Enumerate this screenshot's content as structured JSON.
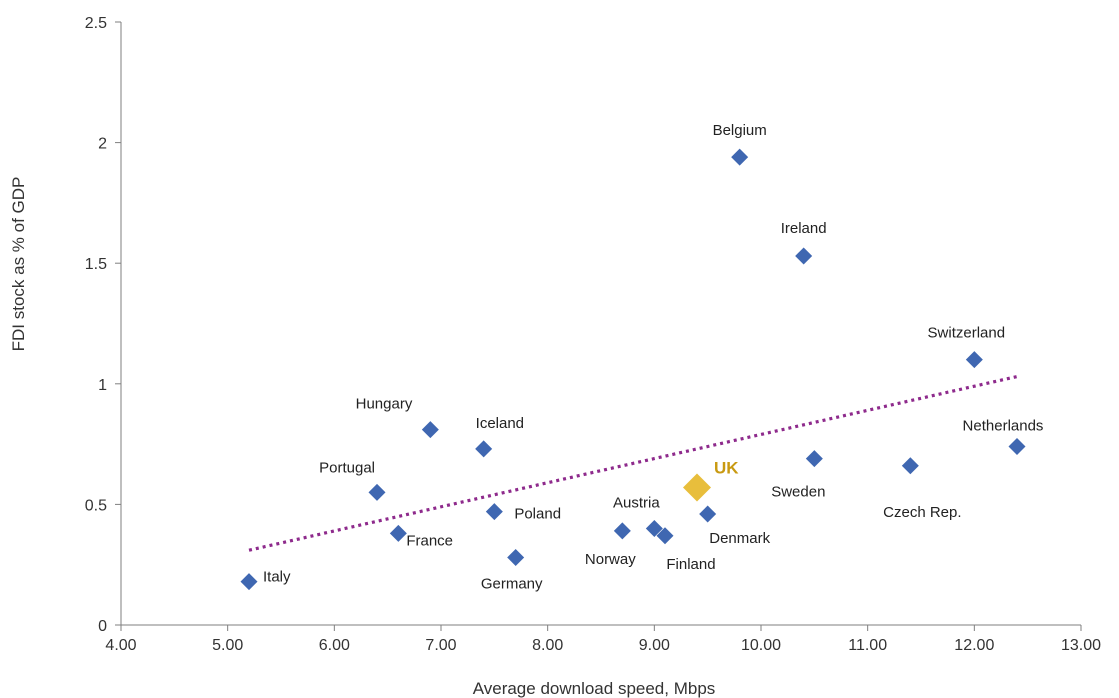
{
  "chart_data": {
    "type": "scatter",
    "title": "",
    "xlabel": "Average download speed, Mbps",
    "ylabel": "FDI stock as % of GDP",
    "xlim": [
      4.0,
      13.0
    ],
    "ylim": [
      0,
      2.5
    ],
    "x_ticks": [
      "4.00",
      "5.00",
      "6.00",
      "7.00",
      "8.00",
      "9.00",
      "10.00",
      "11.00",
      "12.00",
      "13.00"
    ],
    "y_ticks": [
      "0",
      "0.5",
      "1",
      "1.5",
      "2",
      "2.5"
    ],
    "grid": false,
    "marker_color": "#3F67B1",
    "highlight_color": "#E8BE3C",
    "highlight_label_color": "#C99A12",
    "trendline_color": "#8E2A8C",
    "points": [
      {
        "label": "Italy",
        "x": 5.2,
        "y": 0.18
      },
      {
        "label": "Portugal",
        "x": 6.4,
        "y": 0.55
      },
      {
        "label": "France",
        "x": 6.6,
        "y": 0.38
      },
      {
        "label": "Hungary",
        "x": 6.9,
        "y": 0.81
      },
      {
        "label": "Iceland",
        "x": 7.4,
        "y": 0.73
      },
      {
        "label": "Poland",
        "x": 7.5,
        "y": 0.47
      },
      {
        "label": "Germany",
        "x": 7.7,
        "y": 0.28
      },
      {
        "label": "Norway",
        "x": 8.7,
        "y": 0.39
      },
      {
        "label": "Austria",
        "x": 9.0,
        "y": 0.4
      },
      {
        "label": "Finland",
        "x": 9.1,
        "y": 0.37
      },
      {
        "label": "Denmark",
        "x": 9.5,
        "y": 0.46
      },
      {
        "label": "Belgium",
        "x": 9.8,
        "y": 1.94
      },
      {
        "label": "Ireland",
        "x": 10.4,
        "y": 1.53
      },
      {
        "label": "Sweden",
        "x": 10.5,
        "y": 0.69
      },
      {
        "label": "Czech Rep.",
        "x": 11.4,
        "y": 0.66
      },
      {
        "label": "Switzerland",
        "x": 12.0,
        "y": 1.1
      },
      {
        "label": "Netherlands",
        "x": 12.4,
        "y": 0.74
      }
    ],
    "highlight": {
      "label": "UK",
      "x": 9.4,
      "y": 0.57
    },
    "trendline": {
      "style": "dotted",
      "x": [
        5.2,
        12.4
      ],
      "y": [
        0.31,
        1.03
      ]
    }
  }
}
